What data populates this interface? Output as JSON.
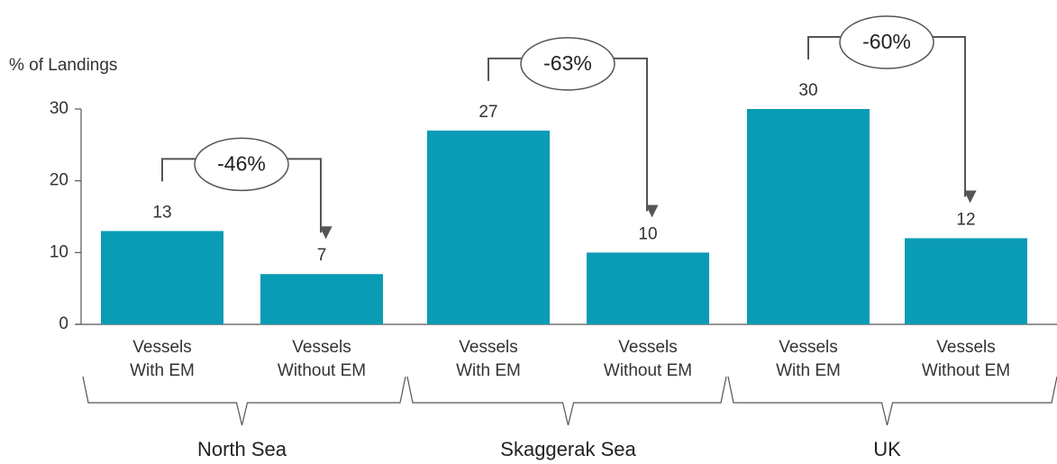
{
  "chart_data": {
    "type": "bar",
    "y_label": "% of Landings",
    "categories": [
      [
        "Vessels",
        "With EM"
      ],
      [
        "Vessels",
        "Without EM"
      ],
      [
        "Vessels",
        "With EM"
      ],
      [
        "Vessels",
        "Without EM"
      ],
      [
        "Vessels",
        "With EM"
      ],
      [
        "Vessels",
        "Without EM"
      ]
    ],
    "values": [
      13,
      7,
      27,
      10,
      30,
      12
    ],
    "color": "#0a9bb5",
    "ylim": [
      0,
      30
    ],
    "yticks": [
      0,
      10,
      20,
      30
    ],
    "groups": [
      {
        "name": "North Sea",
        "annotation": "-46%"
      },
      {
        "name": "Skaggerak Sea",
        "annotation": "-63%"
      },
      {
        "name": "UK",
        "annotation": "-60%"
      }
    ]
  }
}
